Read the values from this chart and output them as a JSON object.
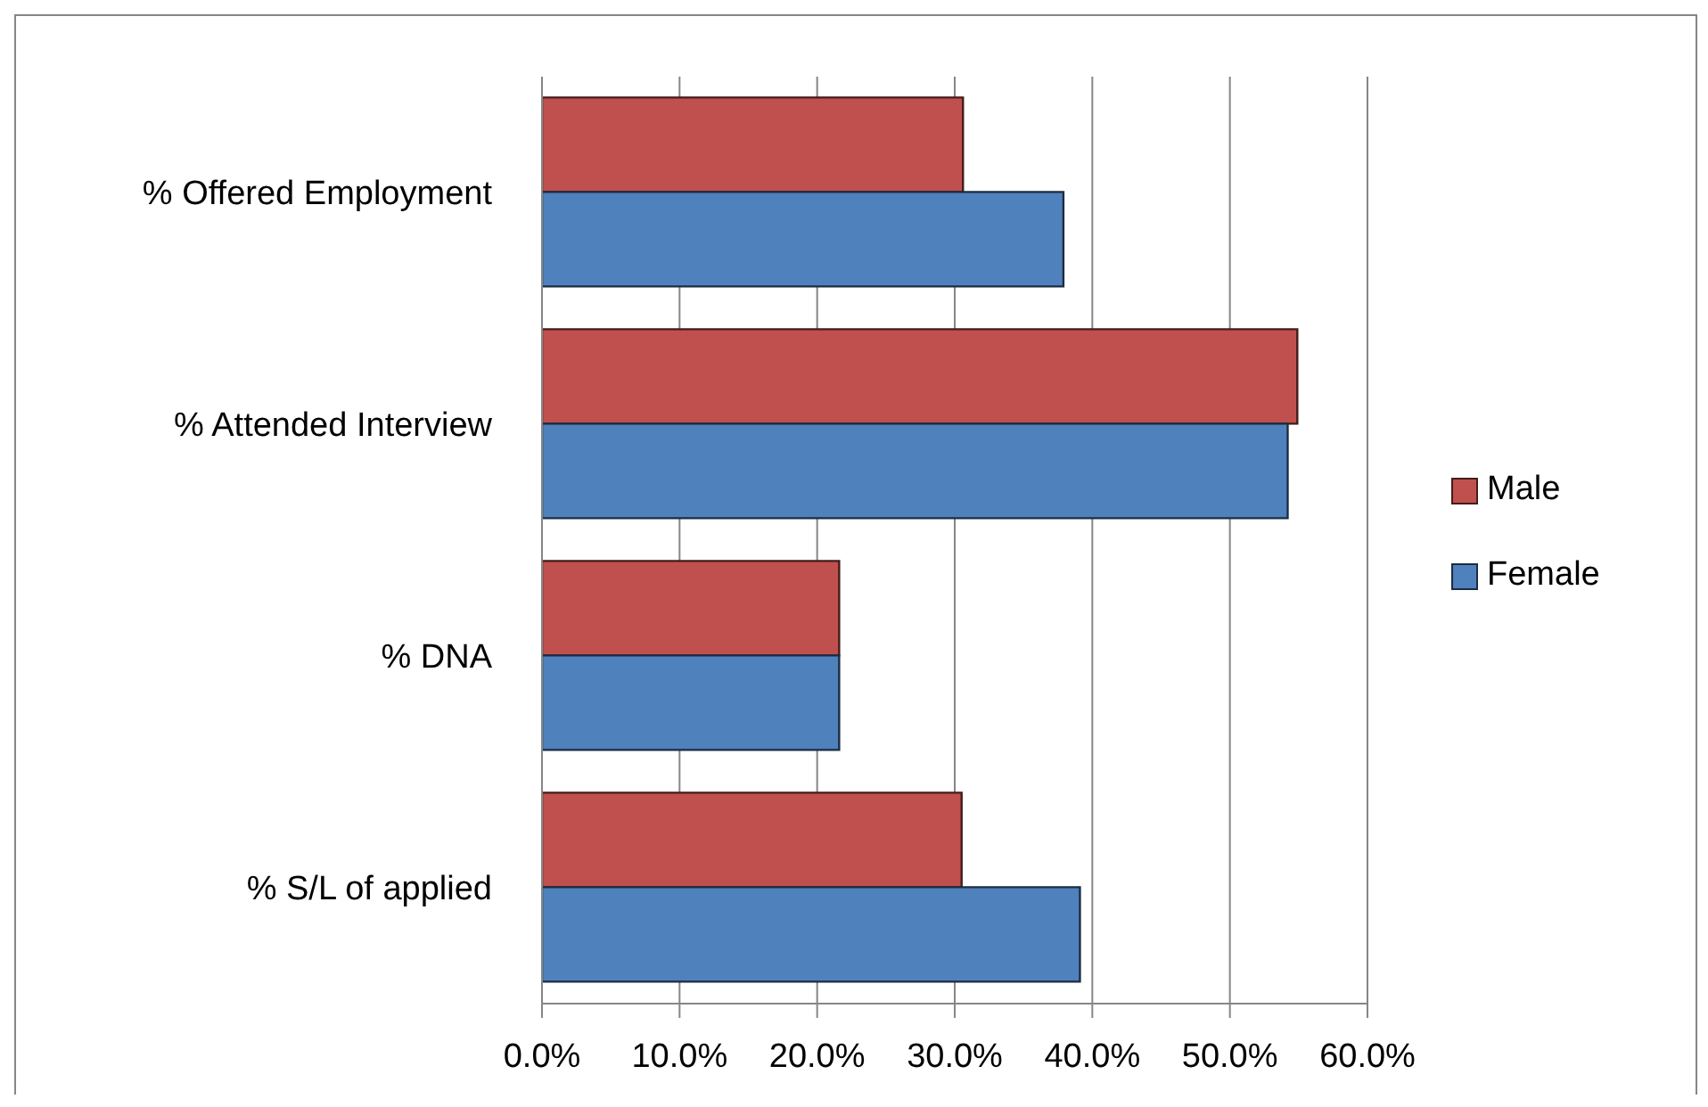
{
  "chart_data": {
    "type": "bar",
    "orientation": "horizontal",
    "categories": [
      "% Offered Employment",
      "% Attended Interview",
      "% DNA",
      "% S/L of applied"
    ],
    "series": [
      {
        "name": "Male",
        "color": "#c0504d",
        "values": [
          30.6,
          54.9,
          21.6,
          30.5
        ]
      },
      {
        "name": "Female",
        "color": "#4f81bd",
        "values": [
          37.9,
          54.2,
          21.6,
          39.1
        ]
      }
    ],
    "xlim": [
      0,
      60
    ],
    "xticks": [
      {
        "value": 0,
        "label": "0.0%"
      },
      {
        "value": 10,
        "label": "10.0%"
      },
      {
        "value": 20,
        "label": "20.0%"
      },
      {
        "value": 30,
        "label": "30.0%"
      },
      {
        "value": 40,
        "label": "40.0%"
      },
      {
        "value": 50,
        "label": "50.0%"
      },
      {
        "value": 60,
        "label": "60.0%"
      }
    ],
    "grid": "x",
    "legend": "right"
  }
}
